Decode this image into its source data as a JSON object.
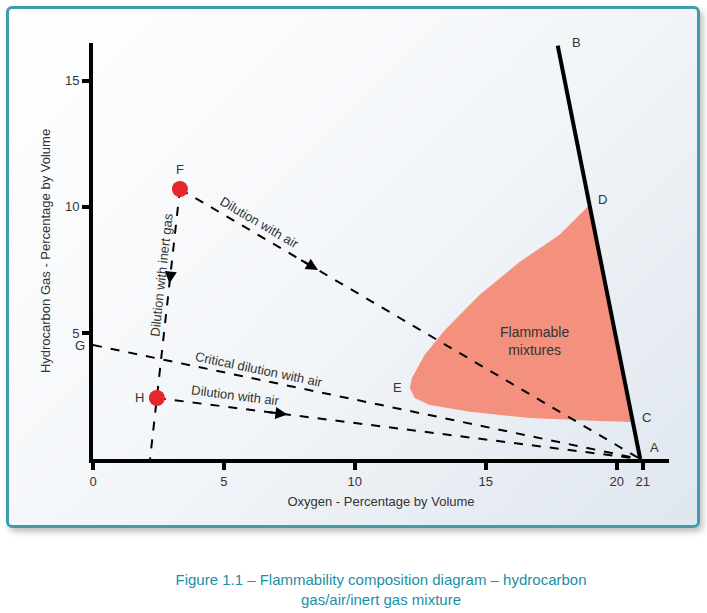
{
  "chart_data": {
    "type": "scatter",
    "title": "Figure 1.1 – Flammability composition diagram – hydrocarbon gas/air/inert gas mixture",
    "x_label": "Oxygen - Percentage by Volume",
    "y_label": "Hydrocarbon Gas - Percentage by Volume",
    "xlim": [
      0,
      22
    ],
    "ylim": [
      0,
      16.5
    ],
    "xticks": [
      0,
      5,
      10,
      15,
      20,
      21
    ],
    "yticks": [
      5,
      10,
      15
    ],
    "grid": false,
    "region": {
      "label": "Flammable mixtures",
      "color": "#f4907e",
      "x": [
        18.97,
        17.82,
        16.3,
        14.77,
        13.44,
        12.67,
        12.18,
        12.1,
        12.29,
        12.86,
        14.39,
        16.68,
        19.35,
        20.6
      ],
      "y": [
        10.08,
        8.89,
        7.82,
        6.51,
        5.12,
        4.13,
        3.21,
        2.82,
        2.42,
        2.14,
        1.87,
        1.63,
        1.51,
        1.47
      ]
    },
    "series": [
      {
        "x": [
          20.9,
          17.75
        ],
        "y": [
          0,
          16.4
        ],
        "line_style": "solid",
        "color": "#000000",
        "marker": "none"
      },
      {
        "label": "Dilution with air",
        "x": [
          3.32,
          20.9
        ],
        "y": [
          10.71,
          0
        ],
        "line_style": "dashed",
        "color": "#000000",
        "marker": "arrow"
      },
      {
        "label": "Dilution with inert gas",
        "x": [
          3.32,
          2.18
        ],
        "y": [
          10.71,
          0
        ],
        "line_style": "dashed",
        "color": "#000000",
        "marker": "arrow"
      },
      {
        "label": "Critical dilution with air",
        "x": [
          0,
          20.9
        ],
        "y": [
          4.52,
          0
        ],
        "line_style": "dashed",
        "color": "#000000",
        "marker": "none"
      },
      {
        "label": "Dilution with air",
        "x": [
          2.44,
          20.9
        ],
        "y": [
          2.42,
          0
        ],
        "line_style": "dashed",
        "color": "#000000",
        "marker": "arrow"
      }
    ],
    "points": [
      {
        "label": "A",
        "x": 20.9,
        "y": 0,
        "marker": "none"
      },
      {
        "label": "B",
        "x": 17.75,
        "y": 16.4,
        "marker": "none"
      },
      {
        "label": "C",
        "x": 20.6,
        "y": 1.47,
        "marker": "none"
      },
      {
        "label": "D",
        "x": 18.97,
        "y": 10.08,
        "marker": "none"
      },
      {
        "label": "E",
        "x": 12.1,
        "y": 2.82,
        "marker": "none"
      },
      {
        "label": "F",
        "x": 3.32,
        "y": 10.71,
        "marker": "circle",
        "color": "#e5262b"
      },
      {
        "label": "G",
        "x": 0,
        "y": 4.52,
        "marker": "none"
      },
      {
        "label": "H",
        "x": 2.44,
        "y": 2.42,
        "marker": "circle",
        "color": "#e5262b"
      }
    ]
  }
}
